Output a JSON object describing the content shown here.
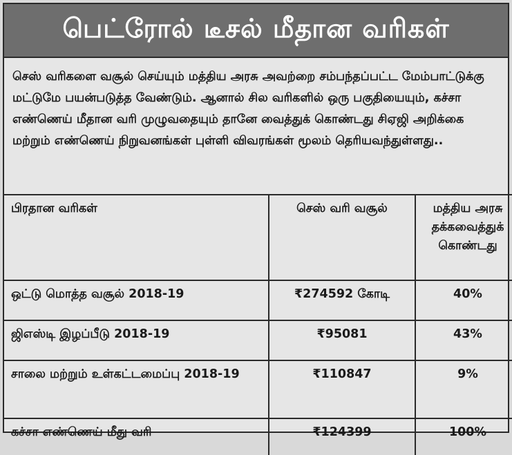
{
  "title": "பெட்ரோல் டீசல் மீதான வரிகள்",
  "intro": "செஸ் வரிகளை வசூல் செய்யும் மத்திய அரசு அவற்றை சம்பந்தப்பட்ட மேம்பாட்டுக்கு மட்டுமே பயன்படுத்த வேண்டும். ஆனால் சில வரிகளில் ஒரு பகுதியையும், கச்சா எண்ணெய் மீதான வரி முழுவதையும் தானே வைத்துக் கொண்டது சிஏஜி அறிக்கை மற்றும் எண்ணெய் நிறுவனங்கள் புள்ளி விவரங்கள் மூலம் தெரியவந்துள்ளது..",
  "table": {
    "headers": [
      "பிரதான வரிகள்",
      "செஸ் வரி வசூல்",
      "மத்திய அரசு தக்கவைத்துக் கொண்டது"
    ],
    "rows": [
      [
        "ஒட்டு மொத்த வசூல் 2018-19",
        "₹274592 கோடி",
        "40%"
      ],
      [
        "ஜிஎஸ்டி இழப்பீடு 2018-19",
        "₹95081",
        "43%"
      ],
      [
        "சாலை மற்றும் உள்கட்டமைப்பு 2018-19",
        "₹110847",
        "9%"
      ],
      [
        "கச்சா எண்ணெய் மீது வரி",
        "₹124399",
        "100%"
      ]
    ]
  }
}
